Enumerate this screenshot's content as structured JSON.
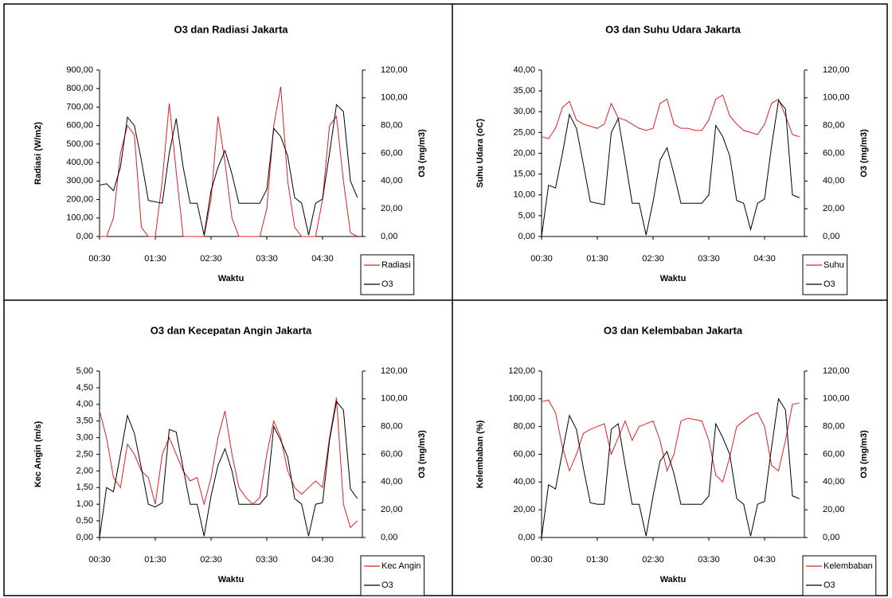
{
  "chart_data": [
    {
      "type": "line",
      "title": "O3 dan Radiasi Jakarta",
      "x_label": "Waktu",
      "y_label": "Radiasi (W/m2)",
      "y2_label": "O3 (mg/m3)",
      "legend": "bottom-right",
      "categories": [
        "00:30",
        null,
        null,
        null,
        null,
        null,
        null,
        null,
        "01:30",
        null,
        null,
        null,
        null,
        null,
        null,
        null,
        "02:30",
        null,
        null,
        null,
        null,
        null,
        null,
        null,
        "03:30",
        null,
        null,
        null,
        null,
        null,
        null,
        null,
        "04:30",
        null,
        null,
        null,
        null,
        null
      ],
      "ylim": [
        0,
        900
      ],
      "yticks": [
        {
          "value": 0,
          "label": "0,00"
        },
        {
          "value": 100,
          "label": "100,00"
        },
        {
          "value": 200,
          "label": "200,00"
        },
        {
          "value": 300,
          "label": "300,00"
        },
        {
          "value": 400,
          "label": "400,00"
        },
        {
          "value": 500,
          "label": "500,00"
        },
        {
          "value": 600,
          "label": "600,00"
        },
        {
          "value": 700,
          "label": "700,00"
        },
        {
          "value": 800,
          "label": "800,00"
        },
        {
          "value": 900,
          "label": "900,00"
        }
      ],
      "y2lim": [
        0,
        120
      ],
      "y2ticks": [
        {
          "value": 0,
          "label": "0,00"
        },
        {
          "value": 20,
          "label": "20,00"
        },
        {
          "value": 40,
          "label": "40,00"
        },
        {
          "value": 60,
          "label": "60,00"
        },
        {
          "value": 80,
          "label": "80,00"
        },
        {
          "value": 100,
          "label": "100,00"
        },
        {
          "value": 120,
          "label": "120,00"
        }
      ],
      "series": [
        {
          "name": "Radiasi",
          "color": "#e02020",
          "values": [
            0,
            0,
            100,
            450,
            600,
            550,
            50,
            0,
            0,
            300,
            720,
            350,
            0,
            0,
            0,
            0,
            200,
            650,
            400,
            100,
            0,
            0,
            0,
            0,
            150,
            600,
            810,
            300,
            50,
            0,
            0,
            0,
            200,
            600,
            650,
            300,
            20,
            0
          ]
        },
        {
          "name": "O3",
          "color": "#000000",
          "axis": "y2",
          "values": [
            37,
            38,
            33,
            50,
            86,
            80,
            55,
            26,
            25,
            24,
            60,
            85,
            50,
            24,
            24,
            1,
            33,
            50,
            62,
            45,
            24,
            24,
            24,
            24,
            34,
            78,
            72,
            58,
            28,
            24,
            1,
            24,
            27,
            60,
            95,
            90,
            40,
            28
          ]
        }
      ]
    },
    {
      "type": "line",
      "title": "O3 dan Suhu Udara Jakarta",
      "x_label": "Waktu",
      "y_label": "Suhu Udara (oC)",
      "y2_label": "O3 (mg/m3)",
      "legend": "bottom-right",
      "categories": [
        "00:30",
        null,
        null,
        null,
        null,
        null,
        null,
        null,
        "01:30",
        null,
        null,
        null,
        null,
        null,
        null,
        null,
        "02:30",
        null,
        null,
        null,
        null,
        null,
        null,
        null,
        "03:30",
        null,
        null,
        null,
        null,
        null,
        null,
        null,
        "04:30",
        null,
        null,
        null,
        null,
        null
      ],
      "ylim": [
        0,
        40
      ],
      "yticks": [
        {
          "value": 0,
          "label": "0,00"
        },
        {
          "value": 5,
          "label": "5,00"
        },
        {
          "value": 10,
          "label": "10,00"
        },
        {
          "value": 15,
          "label": "15,00"
        },
        {
          "value": 20,
          "label": "20,00"
        },
        {
          "value": 25,
          "label": "25,00"
        },
        {
          "value": 30,
          "label": "30,00"
        },
        {
          "value": 35,
          "label": "35,00"
        },
        {
          "value": 40,
          "label": "40,00"
        }
      ],
      "y2lim": [
        0,
        120
      ],
      "y2ticks": [
        {
          "value": 0,
          "label": "0,00"
        },
        {
          "value": 20,
          "label": "20,00"
        },
        {
          "value": 40,
          "label": "40,00"
        },
        {
          "value": 60,
          "label": "60,00"
        },
        {
          "value": 80,
          "label": "80,00"
        },
        {
          "value": 100,
          "label": "100,00"
        },
        {
          "value": 120,
          "label": "120,00"
        }
      ],
      "series": [
        {
          "name": "Suhu",
          "color": "#e02020",
          "values": [
            24,
            23.5,
            26,
            31,
            32.5,
            28,
            27,
            26.5,
            26,
            27,
            32,
            28.5,
            28,
            27,
            26,
            25.5,
            26,
            32,
            33,
            27,
            26,
            26,
            25.5,
            25.5,
            28,
            33,
            34,
            29,
            27,
            25.5,
            25,
            24.5,
            27,
            32,
            33,
            29,
            24.5,
            24
          ]
        },
        {
          "name": "O3",
          "color": "#000000",
          "axis": "y2",
          "values": [
            0,
            37,
            35,
            60,
            88,
            78,
            52,
            25,
            24,
            23,
            75,
            85,
            55,
            24,
            24,
            1,
            25,
            55,
            64,
            45,
            24,
            24,
            24,
            24,
            30,
            80,
            72,
            58,
            26,
            24,
            5,
            24,
            27,
            65,
            98,
            92,
            30,
            28
          ]
        }
      ]
    },
    {
      "type": "line",
      "title": "O3 dan Kecepatan Angin Jakarta",
      "x_label": "Waktu",
      "y_label": "Kec Angin (m/s)",
      "y2_label": "O3 (mg/m3)",
      "legend": "bottom-right",
      "categories": [
        "00:30",
        null,
        null,
        null,
        null,
        null,
        null,
        null,
        "01:30",
        null,
        null,
        null,
        null,
        null,
        null,
        null,
        "02:30",
        null,
        null,
        null,
        null,
        null,
        null,
        null,
        "03:30",
        null,
        null,
        null,
        null,
        null,
        null,
        null,
        "04:30",
        null,
        null,
        null,
        null,
        null
      ],
      "ylim": [
        0,
        5
      ],
      "yticks": [
        {
          "value": 0,
          "label": "0,00"
        },
        {
          "value": 0.5,
          "label": "0,50"
        },
        {
          "value": 1,
          "label": "1,00"
        },
        {
          "value": 1.5,
          "label": "1,50"
        },
        {
          "value": 2,
          "label": "2,00"
        },
        {
          "value": 2.5,
          "label": "2,50"
        },
        {
          "value": 3,
          "label": "3,00"
        },
        {
          "value": 3.5,
          "label": "3,50"
        },
        {
          "value": 4,
          "label": "4,00"
        },
        {
          "value": 4.5,
          "label": "4,50"
        },
        {
          "value": 5,
          "label": "5,00"
        }
      ],
      "y2lim": [
        0,
        120
      ],
      "y2ticks": [
        {
          "value": 0,
          "label": "0,00"
        },
        {
          "value": 20,
          "label": "20,00"
        },
        {
          "value": 40,
          "label": "40,00"
        },
        {
          "value": 60,
          "label": "60,00"
        },
        {
          "value": 80,
          "label": "80,00"
        },
        {
          "value": 100,
          "label": "100,00"
        },
        {
          "value": 120,
          "label": "120,00"
        }
      ],
      "series": [
        {
          "name": "Kec Angin",
          "color": "#e02020",
          "values": [
            3.8,
            3,
            1.8,
            1.5,
            2.8,
            2.5,
            2,
            1.8,
            1,
            2.5,
            3,
            2.5,
            2,
            1.7,
            1.8,
            1,
            1.8,
            3,
            3.8,
            2.5,
            1.5,
            1.2,
            1,
            1.2,
            2.5,
            3.5,
            3,
            2,
            1.5,
            1.3,
            1.5,
            1.7,
            1.5,
            3,
            4.2,
            1,
            0.3,
            0.5
          ]
        },
        {
          "name": "O3",
          "color": "#000000",
          "axis": "y2",
          "values": [
            0,
            36,
            33,
            60,
            88,
            75,
            50,
            24,
            22,
            25,
            78,
            76,
            50,
            24,
            24,
            1,
            30,
            52,
            64,
            48,
            24,
            24,
            24,
            24,
            30,
            80,
            70,
            58,
            28,
            24,
            1,
            24,
            25,
            70,
            98,
            92,
            35,
            28
          ]
        }
      ]
    },
    {
      "type": "line",
      "title": "O3 dan Kelembaban Jakarta",
      "x_label": "Waktu",
      "y_label": "Kelembaban (%)",
      "y2_label": "O3 (mg/m3)",
      "legend": "bottom-right",
      "categories": [
        "00:30",
        null,
        null,
        null,
        null,
        null,
        null,
        null,
        "01:30",
        null,
        null,
        null,
        null,
        null,
        null,
        null,
        "02:30",
        null,
        null,
        null,
        null,
        null,
        null,
        null,
        "03:30",
        null,
        null,
        null,
        null,
        null,
        null,
        null,
        "04:30",
        null,
        null,
        null,
        null,
        null
      ],
      "ylim": [
        0,
        120
      ],
      "yticks": [
        {
          "value": 0,
          "label": "0,00"
        },
        {
          "value": 20,
          "label": "20,00"
        },
        {
          "value": 40,
          "label": "40,00"
        },
        {
          "value": 60,
          "label": "60,00"
        },
        {
          "value": 80,
          "label": "80,00"
        },
        {
          "value": 100,
          "label": "100,00"
        },
        {
          "value": 120,
          "label": "120,00"
        }
      ],
      "y2lim": [
        0,
        120
      ],
      "y2ticks": [
        {
          "value": 0,
          "label": "0,00"
        },
        {
          "value": 20,
          "label": "20,00"
        },
        {
          "value": 40,
          "label": "40,00"
        },
        {
          "value": 60,
          "label": "60,00"
        },
        {
          "value": 80,
          "label": "80,00"
        },
        {
          "value": 100,
          "label": "100,00"
        },
        {
          "value": 120,
          "label": "120,00"
        }
      ],
      "series": [
        {
          "name": "Kelembaban",
          "color": "#e02020",
          "values": [
            98,
            99,
            90,
            65,
            48,
            60,
            75,
            78,
            80,
            82,
            60,
            72,
            84,
            70,
            80,
            82,
            84,
            70,
            48,
            60,
            84,
            86,
            85,
            84,
            70,
            45,
            40,
            58,
            80,
            84,
            88,
            90,
            80,
            52,
            48,
            70,
            96,
            97
          ]
        },
        {
          "name": "O3",
          "color": "#000000",
          "axis": "y2",
          "values": [
            0,
            38,
            35,
            62,
            88,
            78,
            50,
            25,
            24,
            24,
            78,
            82,
            52,
            24,
            24,
            1,
            30,
            55,
            62,
            46,
            24,
            24,
            24,
            24,
            30,
            82,
            72,
            60,
            28,
            24,
            1,
            24,
            26,
            65,
            100,
            92,
            30,
            28
          ]
        }
      ]
    }
  ]
}
